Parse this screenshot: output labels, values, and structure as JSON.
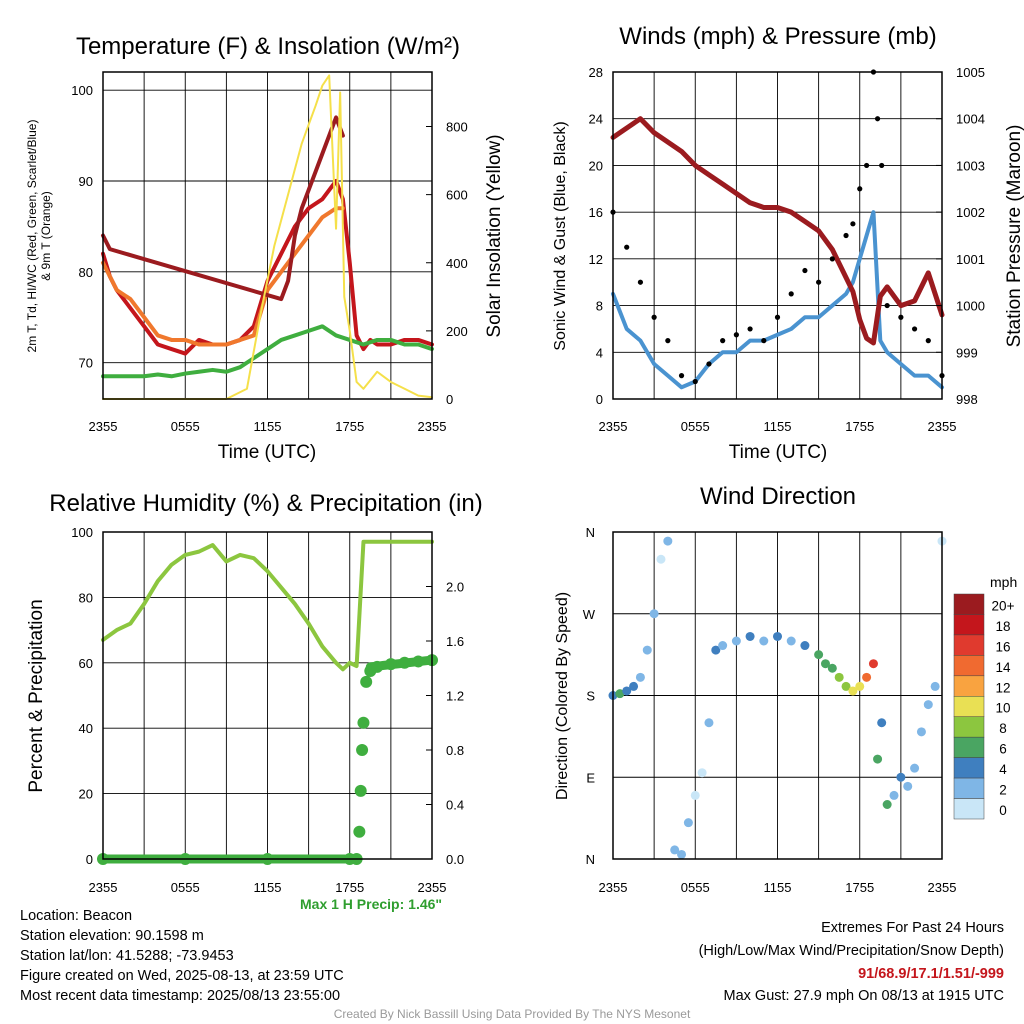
{
  "panels": {
    "temperature": {
      "title": "Temperature (F) & Insolation (W/m²)",
      "xlabel": "Time (UTC)",
      "ylabel_left_1": "2m T, Td, HI/WC (Red, Green, Scarlet/Blue)",
      "ylabel_left_2": "& 9m T (Orange)",
      "ylabel_right": "Solar Insolation (Yellow)"
    },
    "winds": {
      "title": "Winds (mph) & Pressure (mb)",
      "xlabel": "Time (UTC)",
      "ylabel_left": "Sonic Wind & Gust (Blue, Black)",
      "ylabel_right": "Station Pressure (Maroon)"
    },
    "humidity": {
      "title": "Relative Humidity (%) & Precipitation (in)",
      "ylabel_left": "Percent & Precipitation",
      "precip_label": "Max 1 H Precip: 1.46\""
    },
    "direction": {
      "title": "Wind Direction",
      "ylabel_left": "Direction (Colored By Speed)",
      "legend_title": "mph",
      "legend_labels": [
        "20+",
        "18",
        "16",
        "14",
        "12",
        "10",
        "8",
        "6",
        "4",
        "2",
        "0"
      ],
      "legend_colors": [
        "#9b1b1f",
        "#c4161c",
        "#e03a2e",
        "#f06a30",
        "#f9a340",
        "#e9e054",
        "#8cc63f",
        "#4aa562",
        "#3f7fbf",
        "#7fb6e6",
        "#c9e6f7"
      ]
    }
  },
  "info": {
    "location": "Location: Beacon",
    "elevation": "Station elevation: 90.1598 m",
    "latlon": "Station lat/lon: 41.5288; -73.9453",
    "created": "Figure created on Wed, 2025-08-13, at 23:59 UTC",
    "recent": "Most recent data timestamp: 2025/08/13 23:55:00"
  },
  "extremes": {
    "heading": "Extremes For Past 24 Hours",
    "subheading": "(High/Low/Max Wind/Precipitation/Snow Depth)",
    "values": "91/68.9/17.1/1.51/-999",
    "gust": "Max Gust: 27.9 mph On 08/13 at 1915 UTC"
  },
  "credit": "Created By Nick Bassill Using Data Provided By The NYS Mesonet",
  "chart_data": [
    {
      "type": "line",
      "title": "Temperature (F) & Insolation (W/m²)",
      "xlabel": "Time (UTC)",
      "x_ticks": [
        "2355",
        "0555",
        "1155",
        "1755",
        "2355"
      ],
      "x_range_hours": [
        0,
        24
      ],
      "y_left_ticks": [
        70,
        80,
        90,
        100
      ],
      "ylim_left": [
        66,
        102
      ],
      "y_right_ticks": [
        0,
        200,
        400,
        600,
        800
      ],
      "ylim_right": [
        0,
        960
      ],
      "grid": true,
      "series": [
        {
          "color": "#c4161c",
          "x": [
            0,
            0.5,
            1,
            2,
            3,
            4,
            5,
            6,
            7,
            8,
            9,
            10,
            11,
            12,
            13,
            14,
            15,
            16,
            16.5,
            17,
            17.5,
            18,
            18.5,
            19,
            19.5,
            20,
            21,
            22,
            23,
            24
          ],
          "y": [
            82,
            79.5,
            78,
            76,
            74,
            72,
            71.5,
            71,
            72.5,
            72,
            72,
            72.5,
            74,
            79,
            82,
            85,
            87,
            88,
            89,
            90,
            88,
            81,
            73,
            71.5,
            72.5,
            72,
            72,
            72.5,
            72.5,
            72
          ]
        },
        {
          "color": "#f0782d",
          "x": [
            0,
            0.5,
            1,
            2,
            3,
            4,
            5,
            6,
            7,
            8,
            9,
            10,
            11,
            12,
            13,
            14,
            15,
            16,
            16.5,
            17,
            17.5
          ],
          "y": [
            81,
            79.5,
            78,
            77,
            75,
            73,
            72.5,
            72.5,
            72,
            72,
            72,
            72.5,
            73,
            78,
            80,
            82,
            84,
            86,
            86.5,
            87,
            87
          ]
        },
        {
          "color": "#9b1b1f",
          "x": [
            0,
            0.5,
            13,
            13.5,
            14,
            14.5,
            15,
            15.5,
            16,
            16.5,
            17,
            17.5
          ],
          "y": [
            84,
            82.5,
            77,
            79,
            84,
            87,
            89,
            91,
            93,
            95,
            97,
            95
          ]
        },
        {
          "color": "#3fae3f",
          "x": [
            0,
            1,
            2,
            3,
            4,
            5,
            6,
            7,
            8,
            9,
            10,
            11,
            12,
            13,
            14,
            15,
            16,
            17,
            18,
            19,
            20,
            21,
            22,
            23,
            24
          ],
          "y": [
            68.5,
            68.5,
            68.5,
            68.5,
            68.7,
            68.5,
            68.8,
            69,
            69.2,
            69,
            69.5,
            70.5,
            71.5,
            72.5,
            73,
            73.5,
            74,
            73,
            72.5,
            72,
            72.5,
            72.5,
            72,
            72,
            71.5
          ]
        },
        {
          "color": "#f5e04a",
          "axis": "right",
          "x": [
            0,
            6,
            9,
            10.5,
            11.5,
            12.5,
            13.5,
            14.5,
            15.5,
            16,
            16.5,
            17,
            17.3,
            17.6,
            18,
            18.5,
            19,
            20,
            21,
            22,
            23,
            24
          ],
          "y": [
            0,
            0,
            0,
            30,
            250,
            450,
            600,
            750,
            860,
            920,
            950,
            500,
            900,
            300,
            200,
            50,
            30,
            80,
            50,
            30,
            10,
            5
          ]
        }
      ]
    },
    {
      "type": "line",
      "title": "Winds (mph) & Pressure (mb)",
      "xlabel": "Time (UTC)",
      "x_ticks": [
        "2355",
        "0555",
        "1155",
        "1755",
        "2355"
      ],
      "y_left_ticks": [
        0,
        4,
        8,
        12,
        16,
        20,
        24,
        28
      ],
      "ylim_left": [
        0,
        28
      ],
      "y_right_ticks": [
        998,
        999,
        1000,
        1001,
        1002,
        1003,
        1004,
        1005
      ],
      "ylim_right": [
        998,
        1005
      ],
      "grid": true,
      "series": [
        {
          "color": "#4a93d0",
          "x": [
            0,
            1,
            2,
            3,
            4,
            5,
            6,
            7,
            8,
            9,
            10,
            11,
            12,
            13,
            14,
            15,
            16,
            17,
            17.5,
            18,
            18.5,
            19,
            19.5,
            20,
            21,
            22,
            23,
            24
          ],
          "y": [
            9,
            6,
            5,
            3,
            2,
            1,
            1.5,
            3,
            4,
            4,
            5,
            5,
            5.5,
            6,
            7,
            7,
            8,
            9,
            10,
            12,
            14,
            16,
            5,
            4,
            3,
            2,
            2,
            1
          ]
        },
        {
          "color": "#000000",
          "type": "scatter",
          "x": [
            0,
            1,
            2,
            3,
            4,
            5,
            6,
            7,
            8,
            9,
            10,
            11,
            12,
            13,
            14,
            15,
            16,
            17,
            17.5,
            18,
            18.5,
            19,
            19.3,
            19.6,
            20,
            21,
            22,
            23,
            24
          ],
          "y": [
            16,
            13,
            10,
            7,
            5,
            2,
            1.5,
            3,
            5,
            5.5,
            6,
            5,
            7,
            9,
            11,
            10,
            12,
            14,
            15,
            18,
            20,
            28,
            24,
            20,
            8,
            7,
            6,
            5,
            2
          ]
        },
        {
          "color": "#9b1b1f",
          "axis": "right",
          "x": [
            0,
            1,
            2,
            3,
            4,
            5,
            6,
            7,
            8,
            9,
            10,
            11,
            12,
            13,
            14,
            15,
            16,
            17,
            17.5,
            18,
            18.5,
            19,
            19.5,
            20,
            21,
            22,
            23,
            24
          ],
          "y": [
            1003.6,
            1003.8,
            1004,
            1003.7,
            1003.5,
            1003.3,
            1003,
            1002.8,
            1002.6,
            1002.4,
            1002.2,
            1002.1,
            1002.1,
            1002,
            1001.8,
            1001.6,
            1001.2,
            1000.6,
            1000.3,
            999.7,
            999.3,
            999.2,
            1000.2,
            1000.4,
            1000,
            1000.1,
            1000.7,
            999.8
          ]
        }
      ]
    },
    {
      "type": "line",
      "title": "Relative Humidity (%) & Precipitation (in)",
      "x_ticks": [
        "2355",
        "0555",
        "1155",
        "1755",
        "2355"
      ],
      "y_left_ticks": [
        0,
        20,
        40,
        60,
        80,
        100
      ],
      "ylim_left": [
        0,
        100
      ],
      "y_right_ticks": [
        0.0,
        0.4,
        0.8,
        1.2,
        1.6,
        2.0
      ],
      "ylim_right": [
        0,
        2.4
      ],
      "grid": true,
      "series": [
        {
          "color": "#8cc63f",
          "x": [
            0,
            1,
            2,
            3,
            4,
            5,
            6,
            7,
            8,
            9,
            10,
            11,
            12,
            13,
            14,
            15,
            16,
            17,
            17.5,
            18,
            18.5,
            19,
            20,
            21,
            22,
            23,
            24
          ],
          "y": [
            67,
            70,
            72,
            78,
            85,
            90,
            93,
            94,
            96,
            91,
            93,
            92,
            88,
            83,
            78,
            72,
            65,
            60,
            58,
            60,
            59,
            97,
            97,
            97,
            97,
            97,
            97
          ]
        },
        {
          "color": "#3fae3f",
          "axis": "right",
          "type": "scatter",
          "x": [
            0,
            6,
            12,
            18,
            18.5,
            18.7,
            18.8,
            18.9,
            19,
            19.2,
            19.5,
            20,
            21,
            22,
            23,
            24
          ],
          "y": [
            0,
            0,
            0,
            0,
            0,
            0.2,
            0.5,
            0.8,
            1.0,
            1.3,
            1.38,
            1.41,
            1.43,
            1.44,
            1.45,
            1.46
          ]
        }
      ]
    },
    {
      "type": "scatter",
      "title": "Wind Direction",
      "x_ticks": [
        "2355",
        "0555",
        "1155",
        "1755",
        "2355"
      ],
      "y_ticks": [
        "N",
        "E",
        "S",
        "W",
        "N"
      ],
      "ylim_degrees": [
        0,
        360
      ],
      "grid": true,
      "points": [
        [
          0,
          180,
          4
        ],
        [
          0.5,
          182,
          6
        ],
        [
          1,
          185,
          5
        ],
        [
          1.5,
          190,
          4
        ],
        [
          2,
          200,
          3
        ],
        [
          2.5,
          230,
          2
        ],
        [
          3,
          270,
          3
        ],
        [
          3.5,
          330,
          1
        ],
        [
          4,
          350,
          2
        ],
        [
          4.5,
          10,
          2
        ],
        [
          5,
          5,
          3
        ],
        [
          5.5,
          40,
          2
        ],
        [
          6,
          70,
          1
        ],
        [
          6.5,
          95,
          1
        ],
        [
          7,
          150,
          2
        ],
        [
          7.5,
          230,
          4
        ],
        [
          8,
          235,
          3
        ],
        [
          9,
          240,
          3
        ],
        [
          10,
          245,
          4
        ],
        [
          11,
          240,
          3
        ],
        [
          12,
          245,
          4
        ],
        [
          13,
          240,
          3
        ],
        [
          14,
          235,
          5
        ],
        [
          15,
          225,
          6
        ],
        [
          15.5,
          215,
          6
        ],
        [
          16,
          210,
          7
        ],
        [
          16.5,
          200,
          8
        ],
        [
          17,
          190,
          9
        ],
        [
          17.5,
          185,
          10
        ],
        [
          18,
          190,
          11
        ],
        [
          18.5,
          200,
          14
        ],
        [
          19,
          215,
          16
        ],
        [
          19.3,
          110,
          6
        ],
        [
          19.6,
          150,
          5
        ],
        [
          20,
          60,
          7
        ],
        [
          20.5,
          70,
          3
        ],
        [
          21,
          90,
          4
        ],
        [
          21.5,
          80,
          3
        ],
        [
          22,
          100,
          2
        ],
        [
          22.5,
          140,
          2
        ],
        [
          23,
          170,
          3
        ],
        [
          23.5,
          190,
          2
        ],
        [
          24,
          350,
          1
        ]
      ]
    }
  ]
}
